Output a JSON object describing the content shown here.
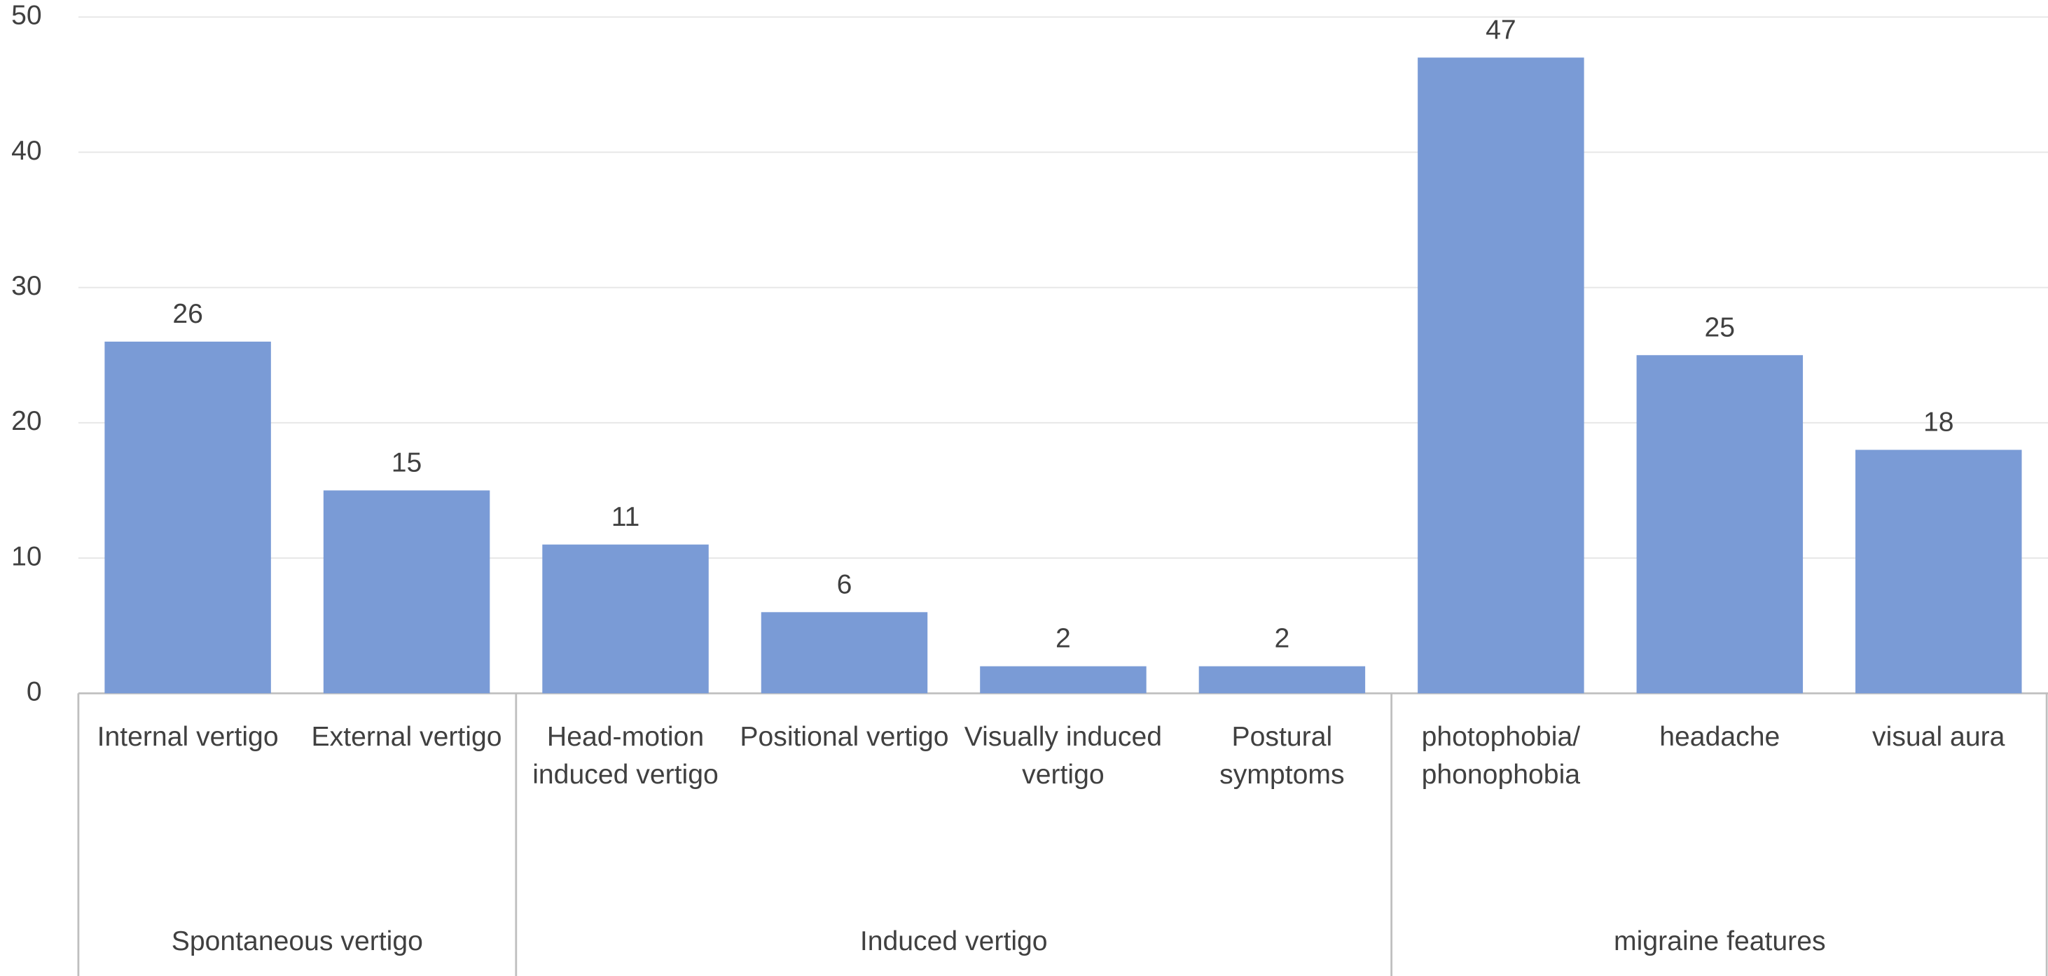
{
  "chart_data": {
    "type": "bar",
    "groups": [
      {
        "name": "Spontaneous vertigo",
        "categories": [
          "Internal vertigo",
          "External vertigo"
        ]
      },
      {
        "name": "Induced vertigo",
        "categories": [
          "Head-motion induced vertigo",
          "Positional vertigo",
          "Visually induced vertigo",
          "Postural symptoms"
        ]
      },
      {
        "name": "migraine features",
        "categories": [
          "photophobia/ phonophobia",
          "headache",
          "visual aura"
        ]
      }
    ],
    "values": [
      26,
      15,
      11,
      6,
      2,
      2,
      47,
      25,
      18
    ],
    "color": "#7a9bd6",
    "ylim": [
      0,
      50
    ],
    "yticks": [
      0,
      10,
      20,
      30,
      40,
      50
    ],
    "grid": true
  }
}
